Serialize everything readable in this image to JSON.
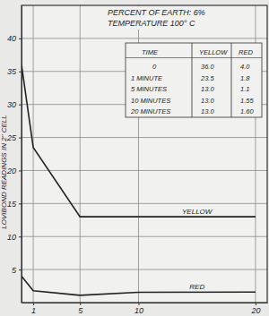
{
  "chart_data": {
    "type": "line",
    "title": "PERCENT OF EARTH: 6%",
    "subtitle": "TEMPERATURE 100° C",
    "y_label": "LOVIBOND READINGS IN 2\" CELL",
    "x": [
      0,
      1,
      5,
      10,
      20
    ],
    "series": [
      {
        "name": "YELLOW",
        "color": "#222222",
        "values": [
          36.0,
          23.5,
          13.0,
          13.0,
          13.0
        ]
      },
      {
        "name": "RED",
        "color": "#222222",
        "values": [
          4.0,
          1.8,
          1.1,
          1.55,
          1.6
        ]
      }
    ],
    "xlim": [
      0,
      21
    ],
    "ylim": [
      0,
      45
    ],
    "xticks": [
      1,
      5,
      10,
      20
    ],
    "yticks": [
      5,
      10,
      15,
      20,
      25,
      30,
      35,
      40
    ],
    "grid": true
  },
  "table": {
    "header": [
      "TIME",
      "YELLOW",
      "RED"
    ],
    "rows": [
      [
        "0",
        "36.0",
        "4.0"
      ],
      [
        "1 MINUTE",
        "23.5",
        "1.8"
      ],
      [
        "5 MINUTES",
        "13.0",
        "1.1"
      ],
      [
        "10 MINUTES",
        "13.0",
        "1.55"
      ],
      [
        "20 MINUTES",
        "13.0",
        "1.60"
      ]
    ]
  }
}
